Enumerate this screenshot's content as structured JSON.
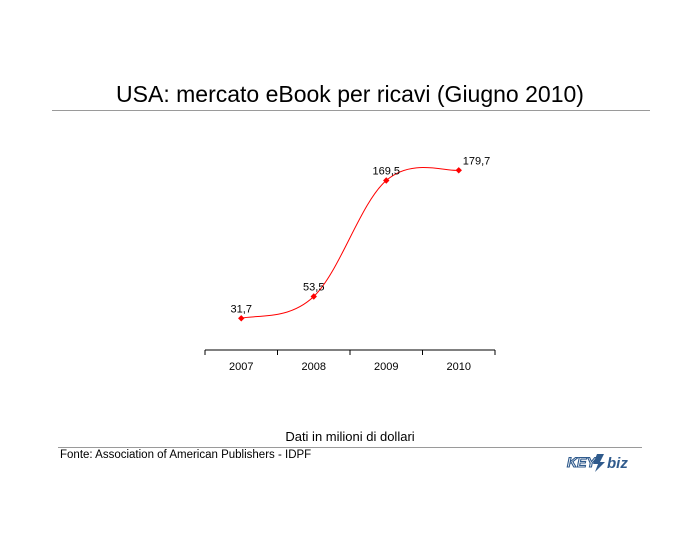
{
  "page": {
    "title": "USA: mercato eBook per ricavi (Giugno 2010)",
    "note": "Dati in milioni di dollari",
    "source": "Fonte: Association of American Publishers - IDPF",
    "logo": {
      "icon": "key4biz-logo",
      "text": "KEY4biz"
    }
  },
  "chart_data": {
    "type": "line",
    "title": "USA: mercato eBook per ricavi (Giugno 2010)",
    "categories": [
      "2007",
      "2008",
      "2009",
      "2010"
    ],
    "series": [
      {
        "values": [
          31.7,
          53.5,
          169.5,
          179.7
        ],
        "labels": [
          "31,7",
          "53,5",
          "169,5",
          "179,7"
        ],
        "color": "#ff0000"
      }
    ],
    "xlabel": "",
    "ylabel": "",
    "ylim": [
      0,
      200
    ],
    "grid": false,
    "legend": "none",
    "smooth": true
  }
}
